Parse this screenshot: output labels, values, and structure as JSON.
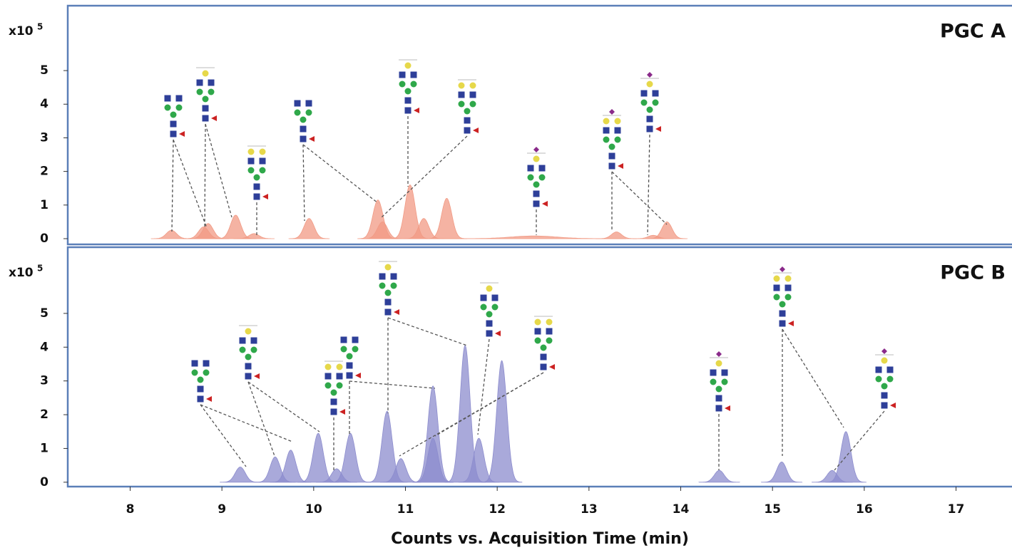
{
  "chart_data": [
    {
      "type": "peaks",
      "title": "PGC A",
      "y_scale_label": "x10",
      "y_scale_exponent": "5",
      "color": "#f19a84",
      "x": [
        8.45,
        8.8,
        8.85,
        9.15,
        9.35,
        9.95,
        10.7,
        10.75,
        11.05,
        11.2,
        11.45,
        12.4,
        13.3,
        13.7,
        13.85
      ],
      "values": [
        0.25,
        0.35,
        0.45,
        0.7,
        0.15,
        0.6,
        1.15,
        0.5,
        1.6,
        0.6,
        1.2,
        0.08,
        0.2,
        0.1,
        0.5
      ],
      "xlim": [
        7.32,
        17.61
      ],
      "ylim": [
        -0.17,
        6.93
      ],
      "yticks": [
        0,
        1,
        2,
        3,
        4,
        5
      ]
    },
    {
      "type": "peaks",
      "title": "PGC B",
      "y_scale_label": "x10",
      "y_scale_exponent": "5",
      "xlabel": "Counts vs. Acquisition Time (min)",
      "color": "#8c8ccd",
      "x": [
        9.2,
        9.58,
        9.75,
        10.05,
        10.25,
        10.4,
        10.8,
        10.95,
        11.3,
        11.3,
        11.65,
        11.8,
        12.05,
        14.42,
        15.1,
        15.65,
        15.8
      ],
      "values": [
        0.45,
        0.75,
        0.95,
        1.45,
        0.4,
        1.45,
        2.1,
        0.7,
        2.85,
        1.3,
        4.05,
        1.3,
        3.6,
        0.35,
        0.6,
        0.35,
        1.5
      ],
      "xlim": [
        7.32,
        17.61
      ],
      "ylim": [
        -0.13,
        6.96
      ],
      "yticks": [
        0,
        1,
        2,
        3,
        4,
        5
      ],
      "xticks": [
        8,
        9,
        10,
        11,
        12,
        13,
        14,
        15,
        16,
        17
      ]
    }
  ]
}
